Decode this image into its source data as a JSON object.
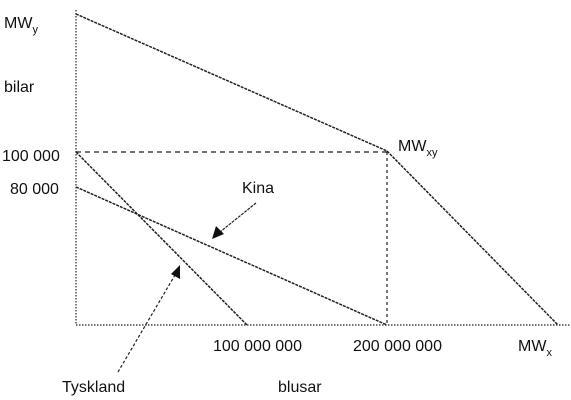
{
  "labels": {
    "mw_y": {
      "main": "MW",
      "sub": "y"
    },
    "mw_xy": {
      "main": "MW",
      "sub": "xy"
    },
    "mw_x": {
      "main": "MW",
      "sub": "x"
    },
    "y_axis": "bilar",
    "x_axis": "blusar",
    "tick_100000": "100 000",
    "tick_80000": "80 000",
    "tick_100000000": "100 000 000",
    "tick_200000000": "200 000 000",
    "china": "Kina",
    "germany": "Tyskland"
  }
}
